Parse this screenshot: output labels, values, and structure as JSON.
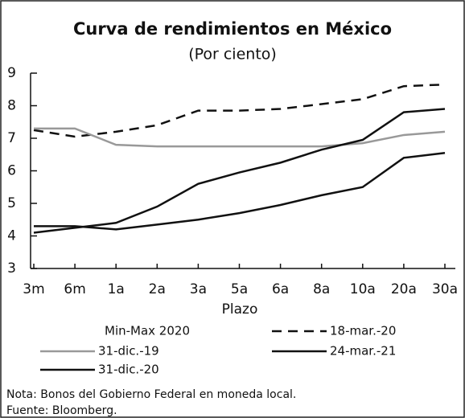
{
  "chart_data": {
    "type": "line",
    "title": "Curva de rendimientos en México",
    "subtitle": "(Por  ciento)",
    "x_label": "Plazo",
    "categories": [
      "3m",
      "6m",
      "1a",
      "2a",
      "3a",
      "5a",
      "6a",
      "8a",
      "10a",
      "20a",
      "30a"
    ],
    "series": [
      {
        "name": "Min-Max 2020",
        "color": "#d0d0d0",
        "values": [
          null,
          null,
          null,
          null,
          null,
          null,
          null,
          null,
          null,
          null,
          null
        ]
      },
      {
        "name": "18-mar.-20",
        "color": "#111111",
        "dash": true,
        "values": [
          7.25,
          7.05,
          7.2,
          7.4,
          7.85,
          7.85,
          7.9,
          8.05,
          8.2,
          8.6,
          8.65
        ]
      },
      {
        "name": "31-dic.-19",
        "color": "#999999",
        "values": [
          7.3,
          7.3,
          6.8,
          6.75,
          6.75,
          6.75,
          6.75,
          6.75,
          6.85,
          7.1,
          7.2
        ]
      },
      {
        "name": "24-mar.-21",
        "color": "#111111",
        "values": [
          4.1,
          4.25,
          4.4,
          4.9,
          5.6,
          5.95,
          6.25,
          6.65,
          6.95,
          7.8,
          7.9
        ]
      },
      {
        "name": "31-dic.-20",
        "color": "#111111",
        "values": [
          4.3,
          4.3,
          4.2,
          4.35,
          4.5,
          4.7,
          4.95,
          5.25,
          5.5,
          6.4,
          6.55
        ]
      }
    ],
    "ylim": [
      3,
      9
    ],
    "yticks": [
      3,
      4,
      5,
      6,
      7,
      8,
      9
    ],
    "notes": [
      "Nota: Bonos del Gobierno Federal en moneda local.",
      "Fuente: Bloomberg."
    ]
  }
}
